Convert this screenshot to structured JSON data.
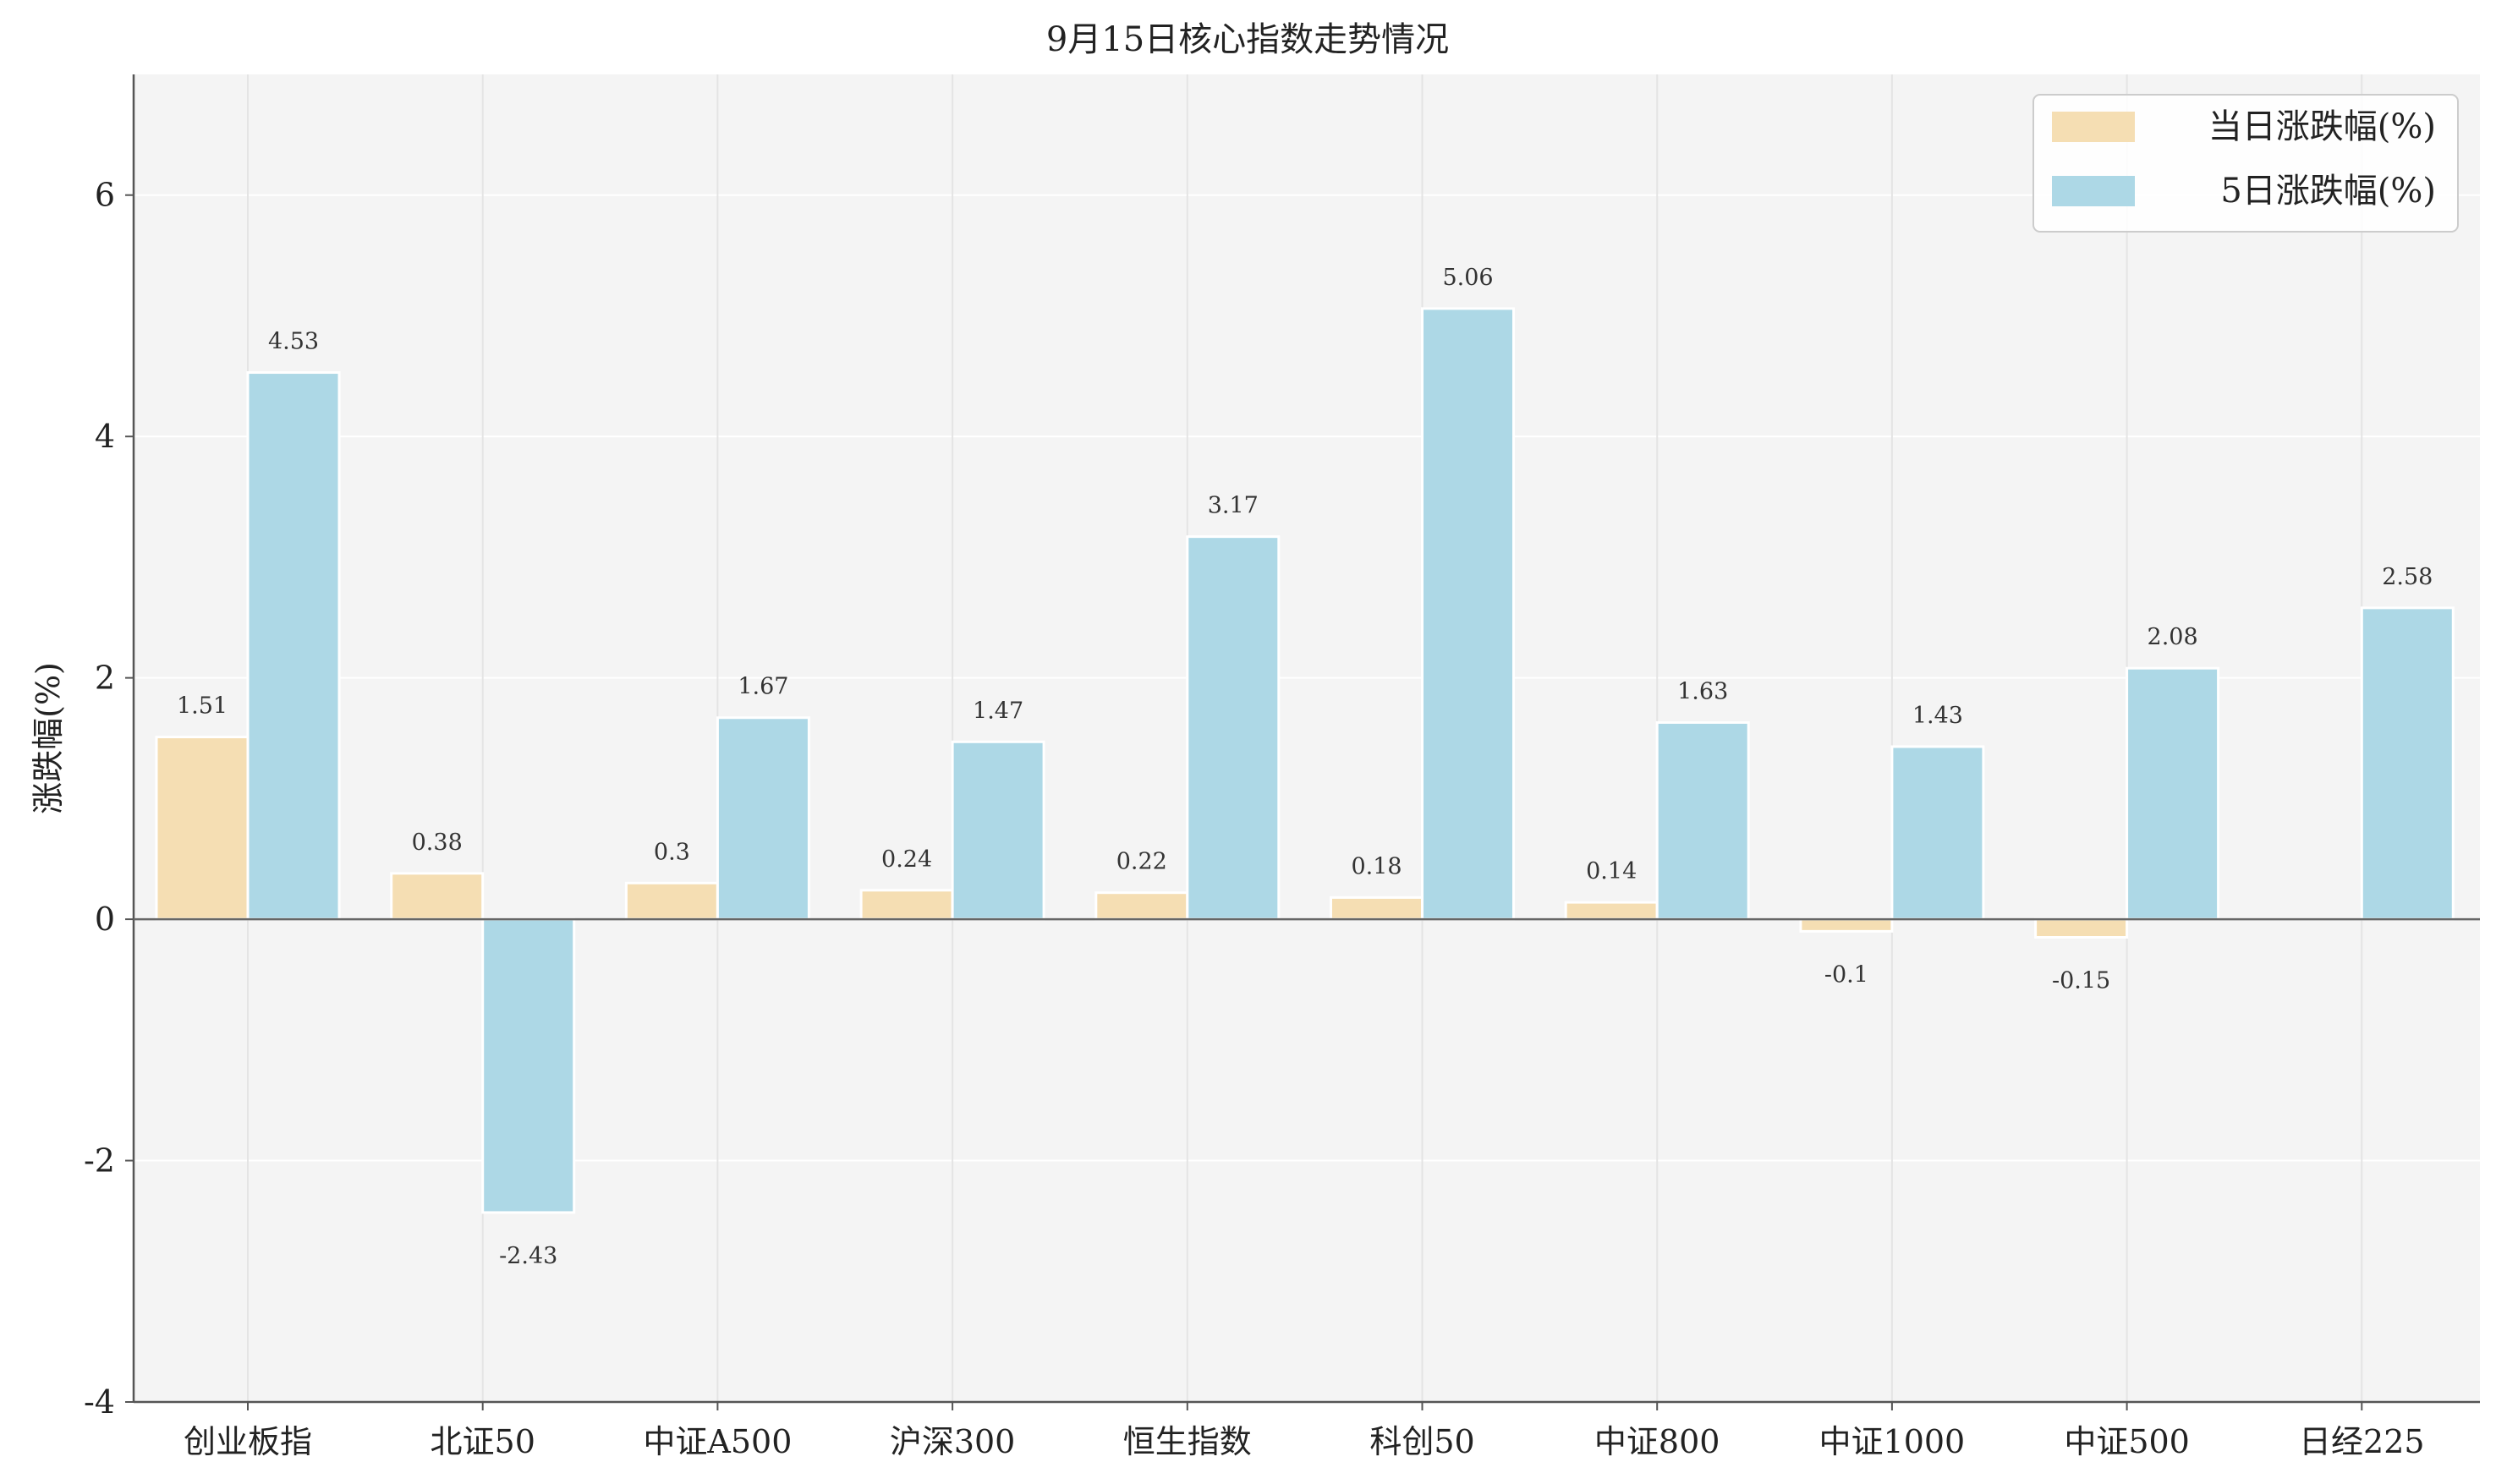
{
  "chart_data": {
    "type": "bar",
    "title": "9月15日核心指数走势情况",
    "xlabel": "",
    "ylabel": "涨跌幅(%)",
    "ylim": [
      -4,
      7
    ],
    "yticks": [
      -4,
      -2,
      0,
      2,
      4,
      6
    ],
    "grid": true,
    "legend_position": "top-right",
    "categories": [
      "创业板指",
      "北证50",
      "中证A500",
      "沪深300",
      "恒生指数",
      "科创50",
      "中证800",
      "中证1000",
      "中证500",
      "日经225"
    ],
    "series": [
      {
        "name": "当日涨跌幅(%)",
        "color": "#f5deb3",
        "values": [
          1.51,
          0.38,
          0.3,
          0.24,
          0.22,
          0.18,
          0.14,
          -0.1,
          -0.15,
          null
        ],
        "labels": [
          "1.51",
          "0.38",
          "0.3",
          "0.24",
          "0.22",
          "0.18",
          "0.14",
          "-0.1",
          "-0.15",
          ""
        ]
      },
      {
        "name": "5日涨跌幅(%)",
        "color": "#add8e6",
        "values": [
          4.53,
          -2.43,
          1.67,
          1.47,
          3.17,
          5.06,
          1.63,
          1.43,
          2.08,
          2.58
        ],
        "labels": [
          "4.53",
          "-2.43",
          "1.67",
          "1.47",
          "3.17",
          "5.06",
          "1.63",
          "1.43",
          "2.08",
          "2.58"
        ]
      }
    ]
  }
}
